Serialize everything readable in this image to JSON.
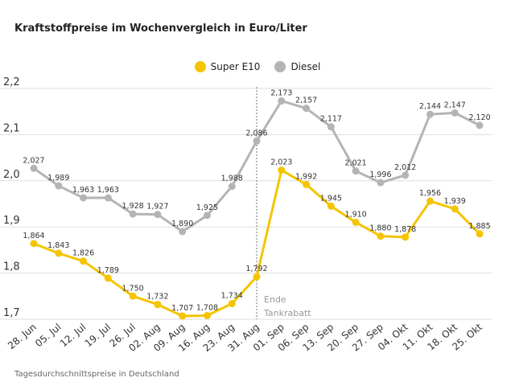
{
  "chart_data": {
    "type": "line",
    "title": "Kraftstoffpreise im Wochenvergleich in Euro/Liter",
    "categories": [
      "28. Jun",
      "05. Jul",
      "12. Jul",
      "19. Jul",
      "26. Jul",
      "02. Aug",
      "09. Aug",
      "16. Aug",
      "23. Aug",
      "31. Aug",
      "01. Sep",
      "06. Sep",
      "13. Sep",
      "20. Sep",
      "27. Sep",
      "04. Okt",
      "11. Okt",
      "18. Okt",
      "25. Okt"
    ],
    "series": [
      {
        "name": "Super E10",
        "color": "#f5c400",
        "values": [
          1.864,
          1.843,
          1.826,
          1.789,
          1.75,
          1.732,
          1.707,
          1.708,
          1.734,
          1.792,
          2.023,
          1.992,
          1.945,
          1.91,
          1.88,
          1.878,
          1.956,
          1.939,
          1.885
        ]
      },
      {
        "name": "Diesel",
        "color": "#b4b4b4",
        "values": [
          2.027,
          1.989,
          1.963,
          1.963,
          1.928,
          1.927,
          1.89,
          1.925,
          1.988,
          2.086,
          2.173,
          2.157,
          2.117,
          2.021,
          1.996,
          2.012,
          2.144,
          2.147,
          2.12
        ]
      }
    ],
    "ylim": [
      1.7,
      2.2
    ],
    "yticks": [
      "1,7",
      "1,8",
      "1,9",
      "2,0",
      "2,1",
      "2,2"
    ],
    "grid": true,
    "legend_position": "top-center",
    "annotation": {
      "category": "31. Aug",
      "lines": [
        "Ende",
        "Tankrabatt"
      ]
    },
    "footnote": "Tagesdurchschnittspreise in Deutschland"
  }
}
